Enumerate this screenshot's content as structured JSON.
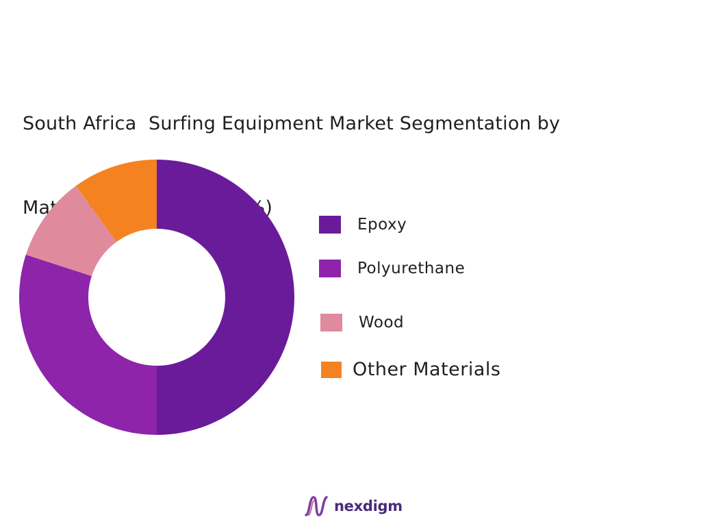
{
  "title_lines": [
    "South Africa  Surfing Equipment Market Segmentation by",
    "Material Type  (in value %)"
  ],
  "chart_data": {
    "type": "pie",
    "variant": "donut",
    "title": "South Africa  Surfing Equipment Market Segmentation by Material Type  (in value %)",
    "unit": "%",
    "slices": [
      {
        "name": "Epoxy",
        "value": 50,
        "color": "#6a1b9a"
      },
      {
        "name": "Polyurethane",
        "value": 30,
        "color": "#8e24aa"
      },
      {
        "name": "Wood",
        "value": 10,
        "color": "#e08a9e"
      },
      {
        "name": "Other Materials",
        "value": 10,
        "color": "#f58220"
      }
    ],
    "legend_position": "right"
  },
  "brand": {
    "name": "nexdigm",
    "icon": "nexdigm-wave-icon",
    "color": "#4a2a7a"
  }
}
